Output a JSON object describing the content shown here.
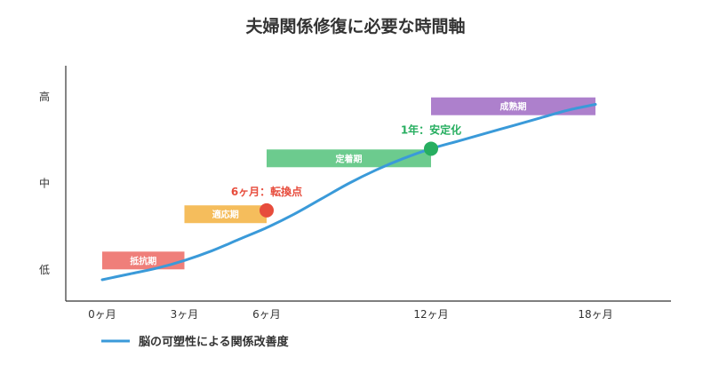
{
  "chart_data": {
    "type": "line",
    "title": "夫婦関係修復に必要な時間軸",
    "xlim": [
      -1,
      22.5
    ],
    "ylim": [
      0,
      1
    ],
    "x_ticks": [
      {
        "value": 0,
        "label": "0ヶ月"
      },
      {
        "value": 3,
        "label": "3ヶ月"
      },
      {
        "value": 6,
        "label": "6ヶ月"
      },
      {
        "value": 12,
        "label": "12ヶ月"
      },
      {
        "value": 18,
        "label": "18ヶ月"
      }
    ],
    "y_ticks": [
      {
        "value": 0.05,
        "label": "低"
      },
      {
        "value": 0.5,
        "label": "中"
      },
      {
        "value": 0.95,
        "label": "高"
      }
    ],
    "series": [
      {
        "name": "脳の可塑性による関係改善度",
        "color": "#3a9ad9",
        "x": [
          0,
          1,
          2,
          3,
          4,
          5,
          6,
          7,
          8,
          9,
          10,
          11,
          12,
          13,
          14,
          15,
          16,
          17,
          18
        ],
        "y": [
          0.0,
          0.03,
          0.06,
          0.1,
          0.15,
          0.21,
          0.27,
          0.34,
          0.42,
          0.5,
          0.57,
          0.63,
          0.68,
          0.72,
          0.76,
          0.8,
          0.84,
          0.88,
          0.91
        ]
      }
    ],
    "phases": [
      {
        "label": "抵抗期",
        "start": 0,
        "end": 3,
        "level": 0.1,
        "color": "#ef7f7a"
      },
      {
        "label": "適応期",
        "start": 3,
        "end": 6,
        "level": 0.34,
        "color": "#f5bd5c"
      },
      {
        "label": "定着期",
        "start": 6,
        "end": 12,
        "level": 0.63,
        "color": "#6ccb8e"
      },
      {
        "label": "成熟期",
        "start": 12,
        "end": 18,
        "level": 0.9,
        "color": "#ad80cc"
      }
    ],
    "milestones": [
      {
        "label": "6ヶ月：転換点",
        "x": 6,
        "y": 0.36,
        "color": "#e74c3c"
      },
      {
        "label": "1年：安定化",
        "x": 12,
        "y": 0.68,
        "color": "#27ae60"
      }
    ],
    "grid": false,
    "legend_position": "bottom-left"
  }
}
